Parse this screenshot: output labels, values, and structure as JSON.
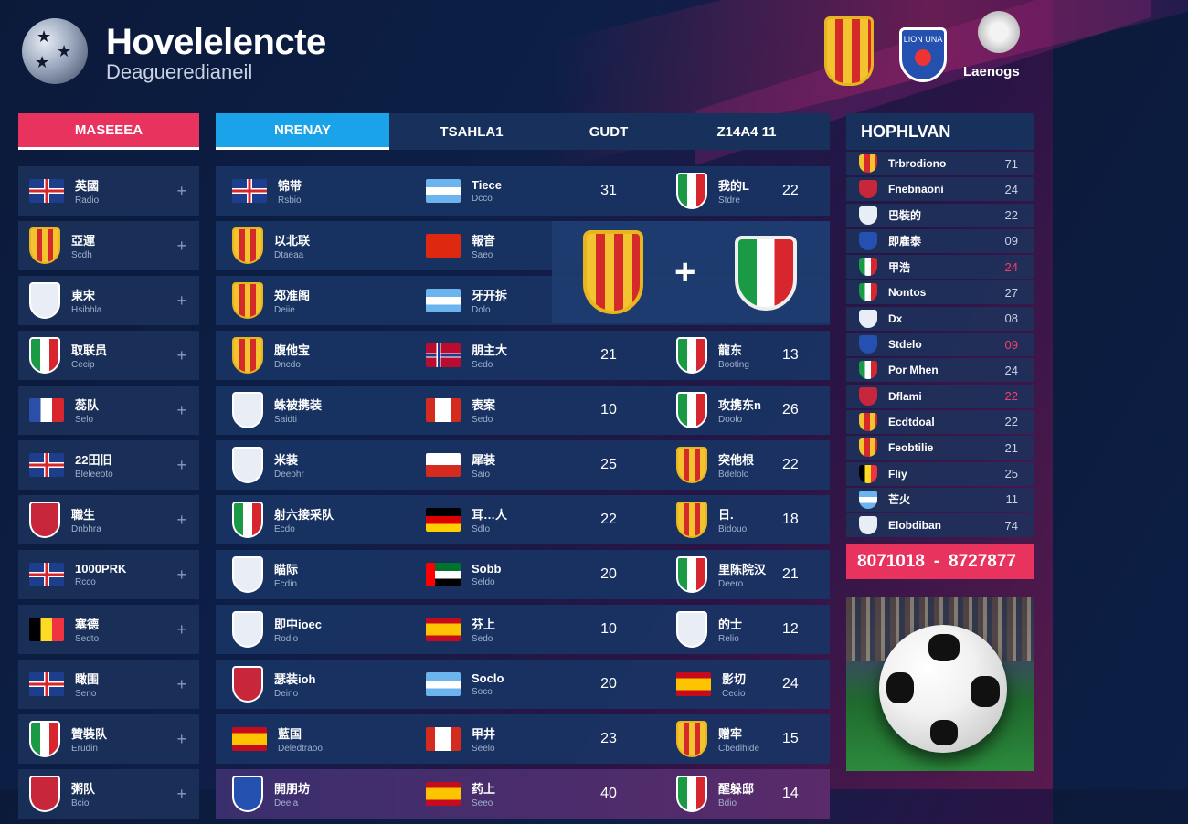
{
  "header": {
    "title": "Hovelelencte",
    "subtitle": "Deagueredianeil",
    "brand_label": "Laenogs",
    "blue_crest_text": "LION UNA"
  },
  "colors": {
    "accent_pink": "#e8335f",
    "accent_blue": "#1aa3e8",
    "panel": "#17305c",
    "hot": "#ff3b6b"
  },
  "left_panel": {
    "header": "MASEEEA",
    "items": [
      {
        "flag": "uk-flag",
        "name": "英國",
        "sub": "Radio"
      },
      {
        "flag": "spain-crest",
        "name": "亞運",
        "sub": "Scdh"
      },
      {
        "flag": "club-crest",
        "name": "東宋",
        "sub": "Hsibhla"
      },
      {
        "flag": "italy-crest",
        "name": "取联员",
        "sub": "Cecip"
      },
      {
        "flag": "france-flag",
        "name": "蕊队",
        "sub": "Selo"
      },
      {
        "flag": "uk-flag",
        "name": "22田旧",
        "sub": "Bleleeoto"
      },
      {
        "flag": "red-crest",
        "name": "職生",
        "sub": "Dnbhra"
      },
      {
        "flag": "uk-flag",
        "name": "1000PRK",
        "sub": "Rcco"
      },
      {
        "flag": "belgium-flag",
        "name": "塞德",
        "sub": "Sedto"
      },
      {
        "flag": "uk-flag",
        "name": "瞰围",
        "sub": "Seno"
      },
      {
        "flag": "italy-crest",
        "name": "贊裝队",
        "sub": "Erudin"
      },
      {
        "flag": "red-crest",
        "name": "粥队",
        "sub": "Bcio"
      }
    ]
  },
  "tabs": [
    "NRENAY",
    "TSAHLA1",
    "GUDT",
    "Z14A4 11"
  ],
  "rows": [
    {
      "home_flag": "uk-flag",
      "home": "锦带",
      "home_sub": "Rsbio",
      "mid_flag": "argentina-flag",
      "mid": "Tiece",
      "mid_sub": "Dcco",
      "score": "31",
      "away_flag": "italy-crest",
      "away": "我的L",
      "away_sub": "Stdre",
      "pts": "22"
    },
    {
      "home_flag": "spain-crest",
      "home": "以北联",
      "home_sub": "Dtaeaa",
      "mid_flag": "china-flag",
      "mid": "報音",
      "mid_sub": "Saeo",
      "score": "",
      "away_flag": "",
      "away": "",
      "away_sub": "",
      "pts": ""
    },
    {
      "home_flag": "spain-crest",
      "home": "郑准阁",
      "home_sub": "Deiie",
      "mid_flag": "argentina-flag",
      "mid": "牙开拆",
      "mid_sub": "Dolo",
      "score": "",
      "away_flag": "",
      "away": "",
      "away_sub": "",
      "pts": ""
    },
    {
      "home_flag": "spain-crest",
      "home": "腹他宝",
      "home_sub": "Dncdo",
      "mid_flag": "norway-flag",
      "mid": "朋主大",
      "mid_sub": "Sedo",
      "score": "21",
      "away_flag": "italy-crest",
      "away": "龍东",
      "away_sub": "Booting",
      "pts": "13"
    },
    {
      "home_flag": "france-crest",
      "home": "蛛被携装",
      "home_sub": "Saidti",
      "mid_flag": "canada-flag",
      "mid": "表案",
      "mid_sub": "Sedo",
      "score": "10",
      "away_flag": "italy-crest",
      "away": "攻携东n",
      "away_sub": "Doolo",
      "pts": "26"
    },
    {
      "home_flag": "uk-crest",
      "home": "米装",
      "home_sub": "Deeohr",
      "mid_flag": "chile-flag",
      "mid": "犀装",
      "mid_sub": "Saio",
      "score": "25",
      "away_flag": "spain-crest",
      "away": "突他根",
      "away_sub": "Bdelolo",
      "pts": "22"
    },
    {
      "home_flag": "italy-crest",
      "home": "射六接采队",
      "home_sub": "Ecdo",
      "mid_flag": "germany-flag",
      "mid": "耳…人",
      "mid_sub": "Sdlo",
      "score": "22",
      "away_flag": "spain-crest",
      "away": "日.",
      "away_sub": "Bidouo",
      "pts": "18"
    },
    {
      "home_flag": "uk-crest",
      "home": "瞄际",
      "home_sub": "Ecdin",
      "mid_flag": "uae-flag",
      "mid": "Sobb",
      "mid_sub": "Seldo",
      "score": "20",
      "away_flag": "italy-crest",
      "away": "里陈院汉",
      "away_sub": "Deero",
      "pts": "21"
    },
    {
      "home_flag": "club-crest",
      "home": "即中ioec",
      "home_sub": "Rodio",
      "mid_flag": "spain-flag",
      "mid": "芬上",
      "mid_sub": "Sedo",
      "score": "10",
      "away_flag": "uk-crest",
      "away": "的士",
      "away_sub": "Relio",
      "pts": "12"
    },
    {
      "home_flag": "red-crest",
      "home": "瑟装ioh",
      "home_sub": "Deino",
      "mid_flag": "argentina-flag",
      "mid": "Soclo",
      "mid_sub": "Soco",
      "score": "20",
      "away_flag": "spain-flag",
      "away": "影切",
      "away_sub": "Cecio",
      "pts": "24"
    },
    {
      "home_flag": "spain-flag",
      "home": "藍国",
      "home_sub": "Deledtraoo",
      "mid_flag": "canada-flag",
      "mid": "甲井",
      "mid_sub": "Seelo",
      "score": "23",
      "away_flag": "spain-crest",
      "away": "赠牢",
      "away_sub": "Cbedlhide",
      "pts": "15"
    },
    {
      "home_flag": "blue-crest",
      "home": "開朋坊",
      "home_sub": "Deeia",
      "mid_flag": "spain-flag",
      "mid": "药上",
      "mid_sub": "Seeo",
      "score": "40",
      "away_flag": "italy-crest",
      "away": "醒躲邸",
      "away_sub": "Bdio",
      "pts": "14"
    }
  ],
  "feature": {
    "home_crest": "spain-crest",
    "away_crest": "italy-crest",
    "sep": "+"
  },
  "right_panel": {
    "header": "HOPHLVAN",
    "items": [
      {
        "crest": "spain",
        "name": "Trbrodiono",
        "val": "71",
        "hot": false
      },
      {
        "crest": "red",
        "name": "Fnebnaoni",
        "val": "24",
        "hot": false
      },
      {
        "crest": "uk",
        "name": "巴裝的",
        "val": "22",
        "hot": false
      },
      {
        "crest": "blue",
        "name": "即雇泰",
        "val": "09",
        "hot": false
      },
      {
        "crest": "italy",
        "name": "甲浩",
        "val": "24",
        "hot": true
      },
      {
        "crest": "italy",
        "name": "Nontos",
        "val": "27",
        "hot": false
      },
      {
        "crest": "uk",
        "name": "Dx",
        "val": "08",
        "hot": false
      },
      {
        "crest": "blue",
        "name": "Stdelo",
        "val": "09",
        "hot": true
      },
      {
        "crest": "italy",
        "name": "Por Mhen",
        "val": "24",
        "hot": false
      },
      {
        "crest": "red",
        "name": "Dflami",
        "val": "22",
        "hot": true
      },
      {
        "crest": "spain",
        "name": "Ecdtdoal",
        "val": "22",
        "hot": false
      },
      {
        "crest": "spain",
        "name": "Feobtilie",
        "val": "21",
        "hot": false
      },
      {
        "crest": "belgium",
        "name": "Fliy",
        "val": "25",
        "hot": false
      },
      {
        "crest": "argentina",
        "name": "芒火",
        "val": "11",
        "hot": false
      },
      {
        "crest": "white",
        "name": "Elobdiban",
        "val": "74",
        "hot": false
      }
    ],
    "score_left": "8071018",
    "score_sep": "-",
    "score_right": "8727877"
  }
}
